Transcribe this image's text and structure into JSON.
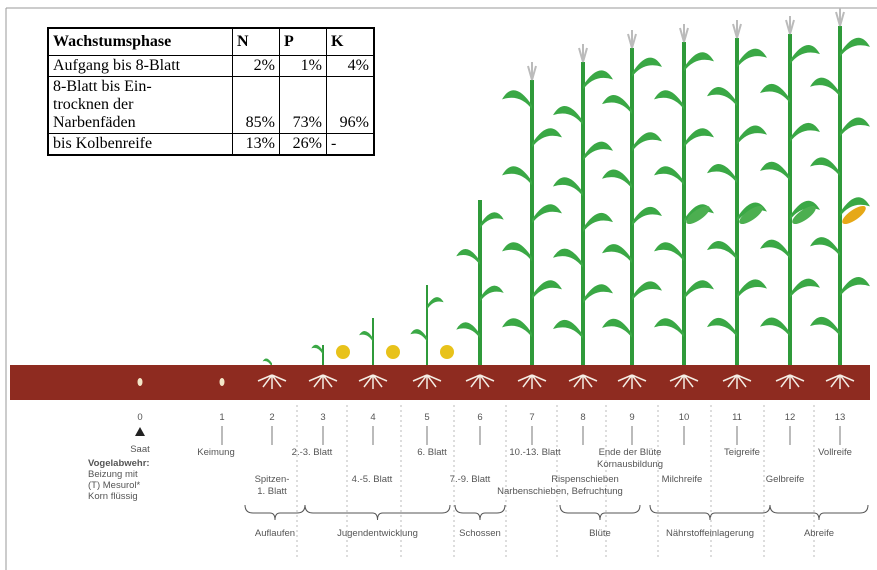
{
  "table": {
    "header": [
      "Wachstumsphase",
      "N",
      "P",
      "K"
    ],
    "rows": [
      [
        [
          "Aufgang bis 8-Blatt"
        ],
        "2%",
        "1%",
        "4%"
      ],
      [
        [
          "8-Blatt bis Ein-",
          "trocknen der",
          "Narbenfäden"
        ],
        "85%",
        "73%",
        "96%"
      ],
      [
        [
          "bis Kolbenreife"
        ],
        "13%",
        "26%",
        "-"
      ]
    ]
  },
  "stages": [
    0,
    1,
    2,
    3,
    4,
    5,
    6,
    7,
    8,
    9,
    10,
    11,
    12,
    13
  ],
  "stage_labels": {
    "saat": "Saat",
    "vogel": [
      "Vogelabwehr:",
      "Beizung mit",
      "(T) Mesurol*",
      "Korn flüssig"
    ],
    "keimung": "Keimung",
    "spitzen": [
      "Spitzen-",
      "1. Blatt"
    ],
    "b23": "2.-3. Blatt",
    "b45": "4.-5. Blatt",
    "b6": "6. Blatt",
    "b79": "7.-9. Blatt",
    "b1013": "10.-13. Blatt",
    "rispen": "Rispenschieben",
    "narben": "Narbenschieben, Befruchtung",
    "ende": [
      "Ende der Blüte",
      "Kornausbildung"
    ],
    "milch": "Milchreife",
    "teig": "Teigreife",
    "gelb": "Gelbreife",
    "voll": "Vollreife"
  },
  "phases": [
    "Auflaufen",
    "Jugendentwicklung",
    "Schossen",
    "Blüte",
    "Nährstoffeinlagerung",
    "Abreife"
  ]
}
